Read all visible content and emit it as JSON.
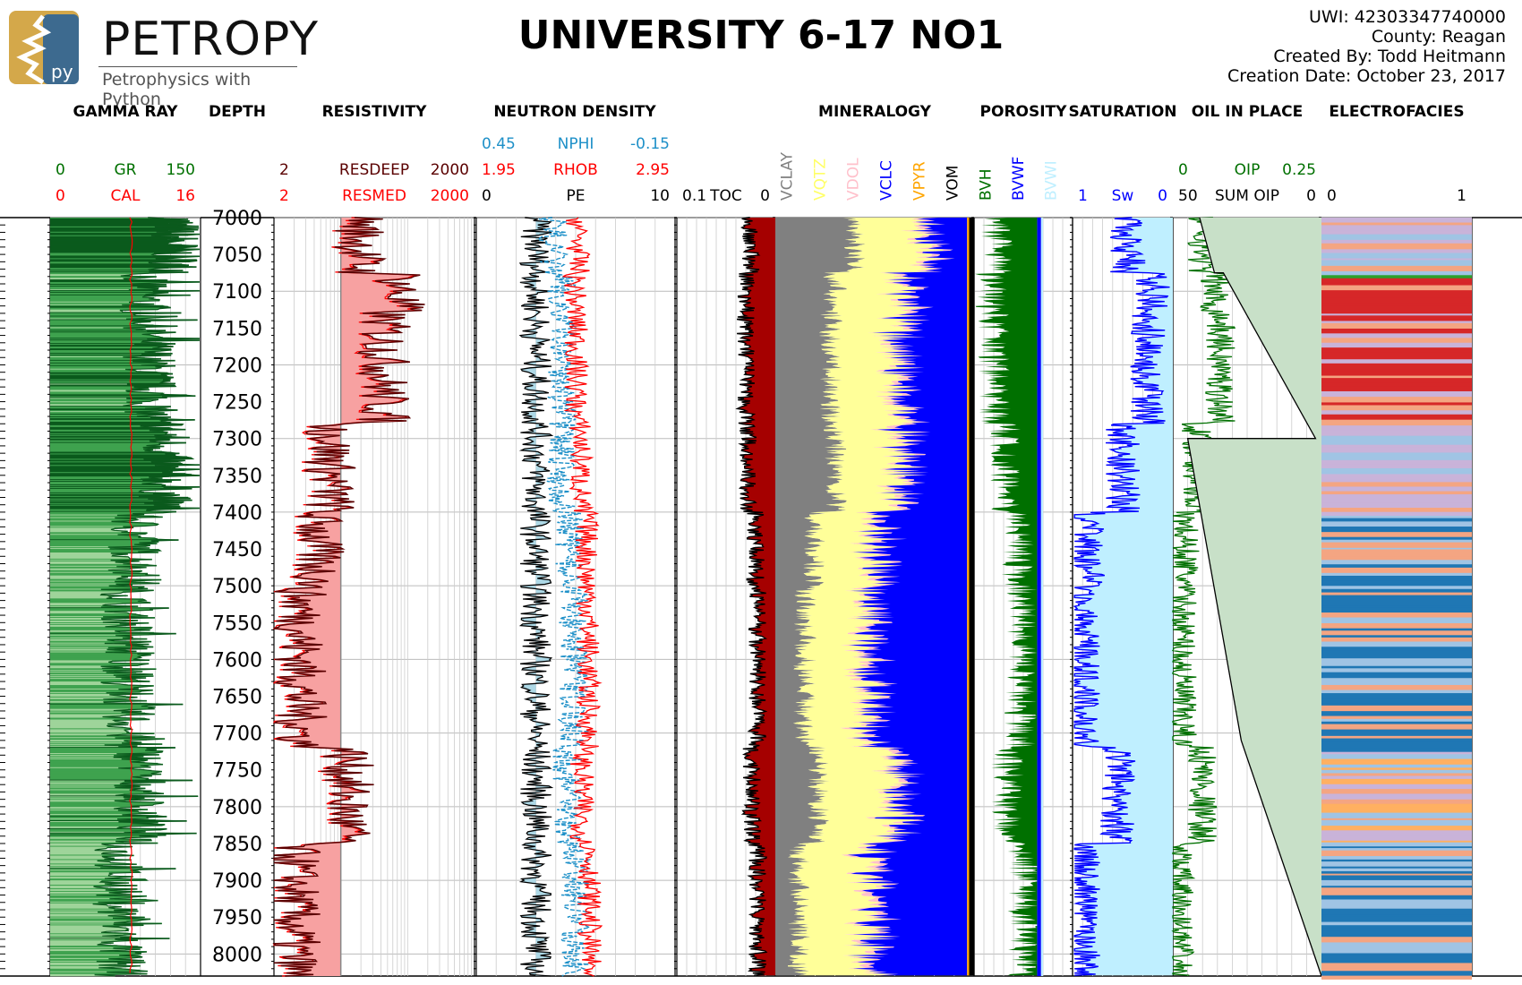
{
  "logo": {
    "word": "PETROPY",
    "tag": "Petrophysics with Python",
    "badge": "py"
  },
  "title": "UNIVERSITY 6-17 NO1",
  "meta": {
    "uwi": "UWI: 42303347740000",
    "county": "County: Reagan",
    "created_by": "Created By: Todd Heitmann",
    "creation_date": "Creation Date: October 23, 2017"
  },
  "colors": {
    "gr_dark": "#0b5a1d",
    "gr_mid": "#3fa24f",
    "gr_light": "#9fd49a",
    "cal": "#ff0000",
    "resdeep": "#5a0000",
    "resmed": "#ff0000",
    "res_fill": "#f7a1a1",
    "nphi": "#1e90c8",
    "rhob": "#ff0000",
    "pe": "#000000",
    "pe_fill": "#add8e6",
    "toc_fill": "#a50000",
    "vclay": "#808080",
    "vqtz": "#ffff99",
    "vdol": "#ffc0cb",
    "vclc": "#0000ff",
    "vpyr": "#ffa500",
    "vom": "#000000",
    "bvh": "#007000",
    "bvwf": "#0000ff",
    "bvwi": "#bfefff",
    "sw": "#0000ff",
    "oip": "#007000",
    "sumoip_fill": "#c8e0c8"
  },
  "chart_data": {
    "type": "line",
    "depth": {
      "top": 7000,
      "bottom": 8030,
      "ticks": [
        7000,
        7050,
        7100,
        7150,
        7200,
        7250,
        7300,
        7350,
        7400,
        7450,
        7500,
        7550,
        7600,
        7650,
        7700,
        7750,
        7800,
        7850,
        7900,
        7950,
        8000
      ]
    },
    "tracks": [
      {
        "key": "gr",
        "header": "GAMMA RAY",
        "scales": [
          {
            "left": "0",
            "name": "GR",
            "right": "150",
            "color": "#007000"
          },
          {
            "left": "0",
            "name": "CAL",
            "right": "16",
            "color": "#ff0000"
          }
        ]
      },
      {
        "key": "depth",
        "header": "DEPTH",
        "scales": []
      },
      {
        "key": "res",
        "header": "RESISTIVITY",
        "log": true,
        "scales": [
          {
            "left": "2",
            "name": "RESDEEP",
            "right": "2000",
            "color": "#5a0000"
          },
          {
            "left": "2",
            "name": "RESMED",
            "right": "2000",
            "color": "#ff0000"
          }
        ]
      },
      {
        "key": "nd",
        "header": "NEUTRON DENSITY",
        "scales": [
          {
            "left": "0.45",
            "name": "NPHI",
            "right": "-0.15",
            "color": "#1e90c8"
          },
          {
            "left": "1.95",
            "name": "RHOB",
            "right": "2.95",
            "color": "#ff0000"
          },
          {
            "left": "0",
            "name": "PE",
            "right": "10",
            "color": "#000000"
          }
        ]
      },
      {
        "key": "toc",
        "header": "",
        "scales": [
          {
            "left": "0.1",
            "name": "TOC",
            "right": "0",
            "color": "#000000"
          }
        ]
      },
      {
        "key": "min",
        "header": "MINERALOGY",
        "vlabels": [
          {
            "name": "VCLAY",
            "color": "#808080"
          },
          {
            "name": "VQTZ",
            "color": "#ffff66"
          },
          {
            "name": "VDOL",
            "color": "#ffc0cb"
          },
          {
            "name": "VCLC",
            "color": "#0000ff"
          },
          {
            "name": "VPYR",
            "color": "#ffa500"
          },
          {
            "name": "VOM",
            "color": "#000000"
          }
        ]
      },
      {
        "key": "por",
        "header": "POROSITY",
        "vlabels": [
          {
            "name": "BVH",
            "color": "#007000"
          },
          {
            "name": "BVWF",
            "color": "#0000ff"
          },
          {
            "name": "BVWI",
            "color": "#bfefff"
          }
        ]
      },
      {
        "key": "sat",
        "header": "SATURATION",
        "scales": [
          {
            "left": "1",
            "name": "Sw",
            "right": "0",
            "color": "#0000ff"
          }
        ]
      },
      {
        "key": "oip",
        "header": "OIL IN PLACE",
        "scales": [
          {
            "left": "0",
            "name": "OIP",
            "right": "0.25",
            "color": "#007000"
          },
          {
            "left": "50",
            "name": "SUM OIP",
            "right": "0",
            "color": "#000000"
          }
        ]
      },
      {
        "key": "ef",
        "header": "ELECTROFACIES",
        "scales": [
          {
            "left": "0",
            "name": "",
            "right": "1",
            "color": "#000000"
          }
        ]
      }
    ],
    "zones": [
      {
        "from": 7000,
        "to": 7075,
        "gr": 125,
        "res": 40,
        "toc": 0.025,
        "clay": 0.4,
        "qtz": 0.35,
        "bvh": 0.06,
        "sw": 0.45,
        "oip": 0.05,
        "facies": "purple"
      },
      {
        "from": 7075,
        "to": 7130,
        "gr": 95,
        "res": 150,
        "toc": 0.03,
        "clay": 0.3,
        "qtz": 0.35,
        "bvh": 0.07,
        "sw": 0.2,
        "oip": 0.07,
        "facies": "redgreen"
      },
      {
        "from": 7130,
        "to": 7280,
        "gr": 100,
        "res": 90,
        "toc": 0.03,
        "clay": 0.28,
        "qtz": 0.33,
        "bvh": 0.065,
        "sw": 0.25,
        "oip": 0.08,
        "facies": "red"
      },
      {
        "from": 7280,
        "to": 7400,
        "gr": 115,
        "res": 14,
        "toc": 0.028,
        "clay": 0.3,
        "qtz": 0.3,
        "bvh": 0.05,
        "sw": 0.5,
        "oip": 0.04,
        "facies": "purple"
      },
      {
        "from": 7400,
        "to": 7500,
        "gr": 85,
        "res": 9,
        "toc": 0.02,
        "clay": 0.2,
        "qtz": 0.3,
        "bvh": 0.03,
        "sw": 0.85,
        "oip": 0.02,
        "facies": "blue"
      },
      {
        "from": 7500,
        "to": 7720,
        "gr": 78,
        "res": 5,
        "toc": 0.018,
        "clay": 0.15,
        "qtz": 0.3,
        "bvh": 0.025,
        "sw": 0.9,
        "oip": 0.015,
        "facies": "blue"
      },
      {
        "from": 7720,
        "to": 7850,
        "gr": 90,
        "res": 25,
        "toc": 0.024,
        "clay": 0.22,
        "qtz": 0.38,
        "bvh": 0.045,
        "sw": 0.55,
        "oip": 0.05,
        "facies": "orange"
      },
      {
        "from": 7850,
        "to": 8030,
        "gr": 70,
        "res": 4,
        "toc": 0.018,
        "clay": 0.12,
        "qtz": 0.35,
        "bvh": 0.02,
        "sw": 0.9,
        "oip": 0.01,
        "facies": "blue"
      }
    ]
  }
}
